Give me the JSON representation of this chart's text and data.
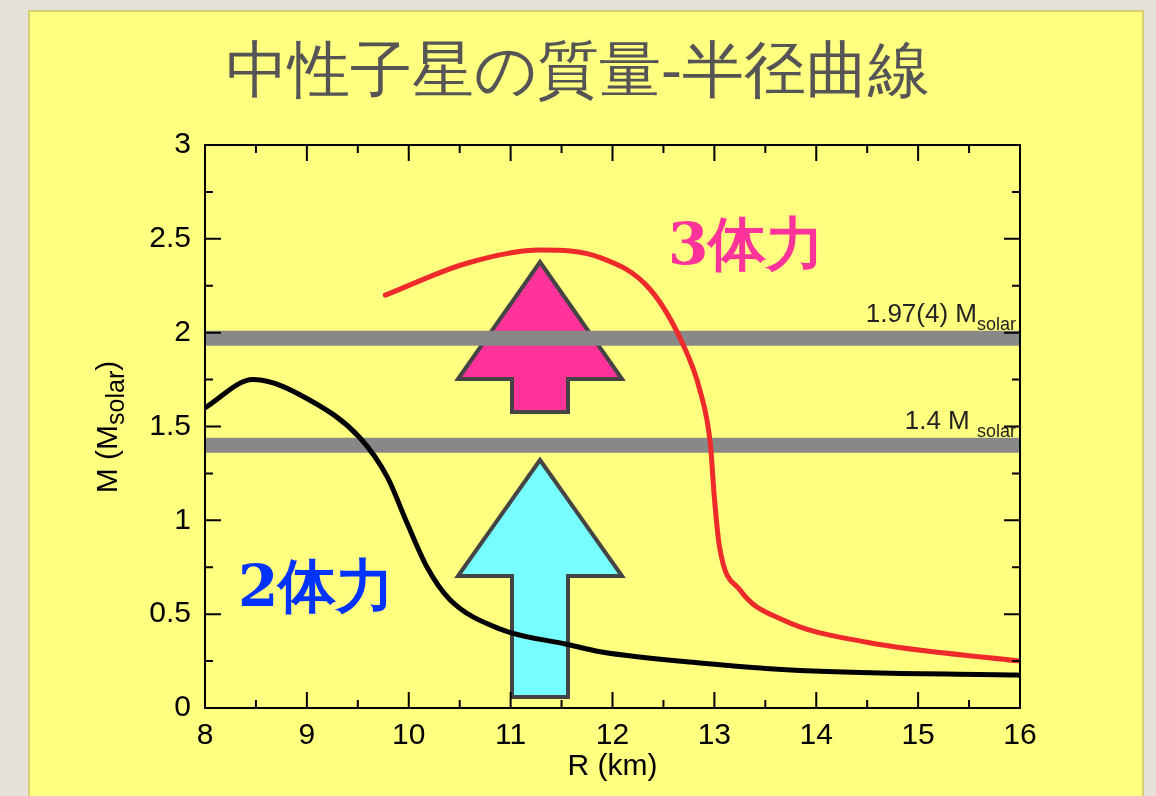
{
  "chart_data": {
    "type": "line",
    "title": "中性子星の質量-半径曲線",
    "xlabel": "R (km)",
    "ylabel": "M (M$_{solar}$)",
    "annotations": [
      "3体力",
      "2体力"
    ],
    "series": [
      {
        "color": "#000000",
        "x": [
          8,
          8.47,
          9.03,
          9.52,
          9.79,
          9.98,
          10.18,
          10.4,
          10.9,
          11.55,
          11.88,
          12.86,
          13.84,
          16
        ],
        "values": [
          1.6,
          1.75,
          1.64,
          1.44,
          1.23,
          0.99,
          0.75,
          0.58,
          0.42,
          0.34,
          0.3,
          0.24,
          0.2,
          0.175
        ]
      },
      {
        "color": "#ee2a2a",
        "x": [
          9.77,
          10.57,
          11.29,
          11.88,
          12.37,
          12.69,
          12.86,
          12.96,
          13.0,
          13.05,
          13.25,
          13.67,
          14.5,
          16
        ],
        "values": [
          2.2,
          2.37,
          2.44,
          2.4,
          2.23,
          1.94,
          1.69,
          1.41,
          1.12,
          0.86,
          0.63,
          0.47,
          0.35,
          0.25
        ]
      }
    ],
    "xlim": [
      8,
      16
    ],
    "xticks": [
      8,
      {
        "value": 8.5,
        "label": null
      },
      9,
      {
        "value": 9.5,
        "label": null
      },
      10,
      {
        "value": 10.5,
        "label": null
      },
      11,
      {
        "value": 11.5,
        "label": null
      },
      12,
      {
        "value": 12.5,
        "label": null
      },
      13,
      {
        "value": 13.5,
        "label": null
      },
      14,
      {
        "value": 14.5,
        "label": null
      },
      15,
      {
        "value": 15.5,
        "label": null
      },
      16
    ],
    "ylim": [
      0,
      3
    ],
    "yticks": [
      0,
      {
        "value": 0.25,
        "label": null
      },
      0.5,
      {
        "value": 0.75,
        "label": null
      },
      1,
      {
        "value": 1.25,
        "label": null
      },
      1.5,
      {
        "value": 1.75,
        "label": null
      },
      2,
      {
        "value": 2.25,
        "label": null
      },
      2.5,
      {
        "value": 2.75,
        "label": null
      },
      3
    ],
    "ref_lines": [
      {
        "axis": "y",
        "value": 1.97,
        "label": "1.97(4) M$_{solar}$",
        "color": "#888888"
      },
      {
        "axis": "y",
        "value": 1.4,
        "label": "1.4 M $_{solar}$",
        "color": "#888888"
      }
    ],
    "grid": false,
    "legend": false,
    "marker": "none",
    "line_style": "solid"
  }
}
